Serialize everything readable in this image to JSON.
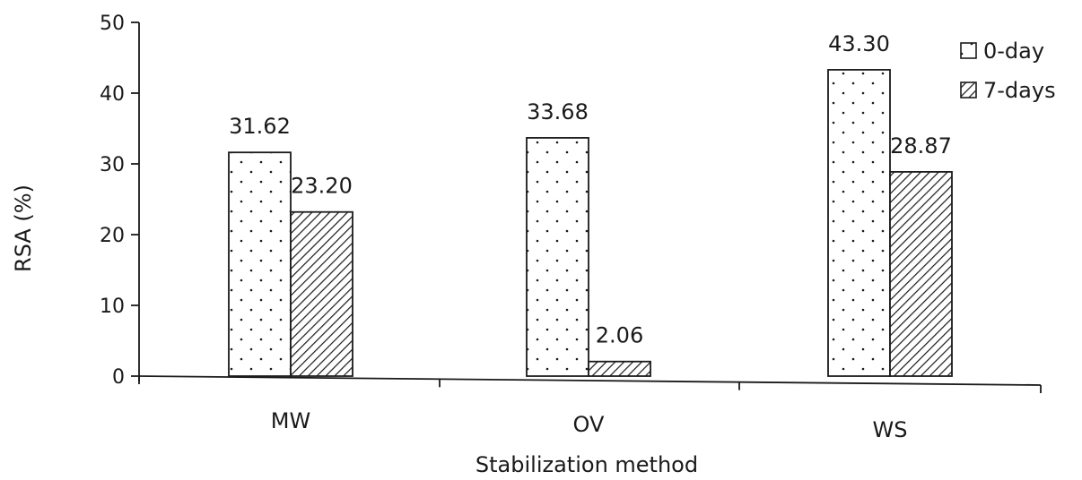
{
  "chart_data": {
    "type": "bar",
    "title": "",
    "xlabel": "Stabilization method",
    "ylabel": "RSA (%)",
    "ylim": [
      0,
      50
    ],
    "yticks": [
      0,
      10,
      20,
      30,
      40,
      50
    ],
    "categories": [
      "MW",
      "OV",
      "WS"
    ],
    "series": [
      {
        "name": "0-day",
        "values": [
          31.62,
          33.68,
          43.3
        ],
        "labels": [
          "31.62",
          "33.68",
          "43.30"
        ],
        "pattern": "dots"
      },
      {
        "name": "7-days",
        "values": [
          23.2,
          2.06,
          28.87
        ],
        "labels": [
          "23.20",
          "2.06",
          "28.87"
        ],
        "pattern": "diagonal-hatch"
      }
    ],
    "legend_position": "top-right",
    "grid": false,
    "colors": {
      "axis": "#1a1a1a",
      "bar_fill": "#ffffff",
      "bar_pattern": "#1a1a1a"
    }
  }
}
